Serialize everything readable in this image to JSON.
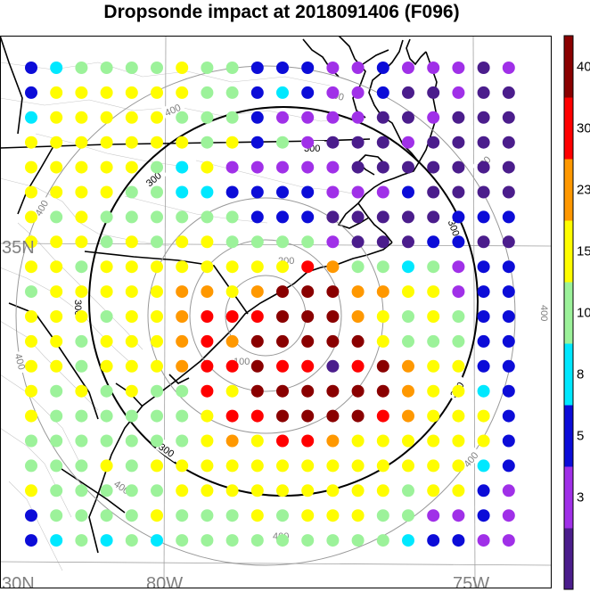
{
  "title": "Dropsonde impact at 2018091406 (F096)",
  "axes": {
    "lat_labels": [
      "35N",
      "30N"
    ],
    "lon_labels": [
      "80W",
      "75W"
    ]
  },
  "ring_labels": {
    "inner": "100",
    "middle": "200",
    "black": "300",
    "outer": "400"
  },
  "colorbar": {
    "labels": [
      "40",
      "30",
      "23",
      "15",
      "10",
      "8",
      "5",
      "3"
    ],
    "colors": [
      "#4b1d8c",
      "#a030e8",
      "#0c0cd8",
      "#00e8ff",
      "#9cf29a",
      "#fffd00",
      "#ff9800",
      "#ff0000",
      "#8a0000"
    ]
  },
  "chart_data": {
    "type": "scatter",
    "title": "Dropsonde impact at 2018091406 (F096)",
    "grid_columns": 20,
    "grid_rows": 20,
    "color_class_legend": "0=indigo,1=violet,2=blue,3=cyan,4=light green,5=yellow,6=orange,7=red,8=dark red",
    "rows": [
      [
        2,
        3,
        4,
        4,
        4,
        4,
        5,
        4,
        4,
        2,
        2,
        2,
        1,
        1,
        2,
        1,
        1,
        1,
        0,
        1
      ],
      [
        2,
        5,
        5,
        5,
        5,
        5,
        5,
        4,
        4,
        2,
        3,
        2,
        1,
        1,
        2,
        0,
        0,
        1,
        0,
        0
      ],
      [
        3,
        5,
        5,
        5,
        5,
        5,
        4,
        4,
        4,
        2,
        1,
        1,
        1,
        1,
        0,
        0,
        1,
        0,
        0,
        0
      ],
      [
        5,
        5,
        5,
        5,
        5,
        5,
        5,
        4,
        5,
        2,
        4,
        1,
        0,
        0,
        0,
        1,
        0,
        0,
        0,
        0
      ],
      [
        5,
        5,
        5,
        5,
        5,
        4,
        3,
        5,
        1,
        1,
        1,
        1,
        1,
        0,
        0,
        0,
        0,
        0,
        0,
        0
      ],
      [
        5,
        5,
        5,
        5,
        4,
        4,
        3,
        3,
        2,
        2,
        2,
        2,
        1,
        1,
        1,
        2,
        0,
        0,
        0,
        0
      ],
      [
        5,
        4,
        5,
        4,
        4,
        4,
        4,
        4,
        4,
        2,
        2,
        2,
        0,
        0,
        0,
        0,
        0,
        2,
        2,
        2
      ],
      [
        5,
        5,
        5,
        4,
        5,
        4,
        5,
        5,
        4,
        4,
        4,
        4,
        1,
        0,
        0,
        0,
        2,
        2,
        0,
        0
      ],
      [
        5,
        5,
        4,
        5,
        5,
        5,
        5,
        5,
        5,
        5,
        5,
        7,
        6,
        4,
        4,
        3,
        4,
        1,
        2,
        2
      ],
      [
        4,
        5,
        5,
        5,
        5,
        5,
        6,
        6,
        5,
        6,
        8,
        8,
        8,
        6,
        6,
        5,
        5,
        1,
        2,
        2
      ],
      [
        5,
        5,
        5,
        4,
        5,
        5,
        6,
        7,
        7,
        7,
        8,
        8,
        8,
        6,
        5,
        4,
        5,
        4,
        2,
        2
      ],
      [
        5,
        5,
        4,
        5,
        5,
        5,
        6,
        7,
        6,
        8,
        8,
        8,
        8,
        8,
        5,
        4,
        4,
        4,
        2,
        2
      ],
      [
        5,
        5,
        4,
        5,
        5,
        5,
        6,
        7,
        7,
        8,
        7,
        7,
        0,
        7,
        8,
        6,
        5,
        5,
        2,
        2
      ],
      [
        5,
        4,
        5,
        4,
        5,
        4,
        4,
        7,
        5,
        8,
        8,
        8,
        8,
        8,
        8,
        6,
        5,
        5,
        3,
        2
      ],
      [
        5,
        4,
        4,
        4,
        4,
        4,
        4,
        5,
        7,
        7,
        8,
        8,
        8,
        8,
        7,
        6,
        5,
        5,
        5,
        2
      ],
      [
        4,
        4,
        4,
        4,
        4,
        4,
        4,
        5,
        6,
        5,
        7,
        7,
        6,
        5,
        5,
        5,
        5,
        5,
        5,
        2
      ],
      [
        4,
        4,
        4,
        5,
        4,
        5,
        5,
        5,
        5,
        5,
        5,
        5,
        5,
        5,
        5,
        5,
        5,
        5,
        3,
        2
      ],
      [
        5,
        4,
        4,
        4,
        4,
        4,
        5,
        5,
        5,
        5,
        5,
        5,
        5,
        5,
        5,
        4,
        5,
        5,
        2,
        1
      ],
      [
        2,
        4,
        4,
        4,
        4,
        5,
        4,
        4,
        4,
        5,
        4,
        5,
        5,
        5,
        4,
        4,
        1,
        1,
        2,
        1
      ],
      [
        2,
        3,
        4,
        3,
        4,
        3,
        4,
        4,
        4,
        4,
        4,
        4,
        4,
        4,
        4,
        3,
        2,
        2,
        1,
        1
      ]
    ]
  }
}
